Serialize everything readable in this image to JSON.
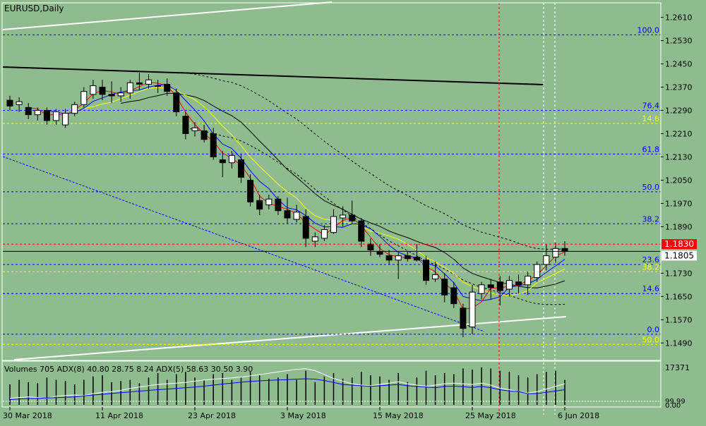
{
  "header": {
    "symbol_label": "EURUSD,Daily",
    "indicator_label": "Volumes 705 ADX(8) 40.80 28.75 8.24 ADX(5) 58.63 30.50 3.90"
  },
  "colors": {
    "background": "#8fbc8f",
    "bull": "#ffffff",
    "bear": "#000000",
    "fib_blue": "#0000ff",
    "fib_yellow": "#ffff00",
    "ma_red": "#ff0000",
    "ma_blue": "#0000ff",
    "ma_yellow": "#ffff00",
    "ma_black": "#000000",
    "current_price_bg": "#ff0000"
  },
  "chart_data": {
    "type": "candlestick",
    "symbol": "EURUSD",
    "timeframe": "Daily",
    "ylim": [
      1.143,
      1.266
    ],
    "y_ticks": [
      "1.2610",
      "1.2530",
      "1.2450",
      "1.2370",
      "1.2290",
      "1.2210",
      "1.2130",
      "1.2050",
      "1.1970",
      "1.1890",
      "1.1730",
      "1.1650",
      "1.1570",
      "1.1490"
    ],
    "x_ticks": [
      {
        "i": 0,
        "label": "30 Mar 2018"
      },
      {
        "i": 10,
        "label": "11 Apr 2018"
      },
      {
        "i": 20,
        "label": "23 Apr 2018"
      },
      {
        "i": 30,
        "label": "3 May 2018"
      },
      {
        "i": 40,
        "label": "15 May 2018"
      },
      {
        "i": 50,
        "label": "25 May 2018"
      },
      {
        "i": 60,
        "label": "6 Jun 2018"
      }
    ],
    "candles": [
      {
        "o": 1.2325,
        "h": 1.234,
        "l": 1.229,
        "c": 1.2305
      },
      {
        "o": 1.231,
        "h": 1.2335,
        "l": 1.2285,
        "c": 1.232
      },
      {
        "o": 1.23,
        "h": 1.2315,
        "l": 1.226,
        "c": 1.2275
      },
      {
        "o": 1.2275,
        "h": 1.23,
        "l": 1.2255,
        "c": 1.229
      },
      {
        "o": 1.229,
        "h": 1.23,
        "l": 1.224,
        "c": 1.2255
      },
      {
        "o": 1.2255,
        "h": 1.2295,
        "l": 1.224,
        "c": 1.2285
      },
      {
        "o": 1.224,
        "h": 1.2295,
        "l": 1.223,
        "c": 1.228
      },
      {
        "o": 1.228,
        "h": 1.232,
        "l": 1.227,
        "c": 1.231
      },
      {
        "o": 1.231,
        "h": 1.237,
        "l": 1.23,
        "c": 1.2355
      },
      {
        "o": 1.2345,
        "h": 1.2395,
        "l": 1.233,
        "c": 1.2375
      },
      {
        "o": 1.237,
        "h": 1.2395,
        "l": 1.2325,
        "c": 1.2345
      },
      {
        "o": 1.2345,
        "h": 1.239,
        "l": 1.2315,
        "c": 1.234
      },
      {
        "o": 1.234,
        "h": 1.237,
        "l": 1.232,
        "c": 1.235
      },
      {
        "o": 1.235,
        "h": 1.2395,
        "l": 1.233,
        "c": 1.2385
      },
      {
        "o": 1.2385,
        "h": 1.242,
        "l": 1.236,
        "c": 1.238
      },
      {
        "o": 1.238,
        "h": 1.2415,
        "l": 1.2365,
        "c": 1.2395
      },
      {
        "o": 1.2375,
        "h": 1.2395,
        "l": 1.235,
        "c": 1.2375
      },
      {
        "o": 1.238,
        "h": 1.24,
        "l": 1.234,
        "c": 1.2355
      },
      {
        "o": 1.235,
        "h": 1.2365,
        "l": 1.227,
        "c": 1.2285
      },
      {
        "o": 1.227,
        "h": 1.2285,
        "l": 1.219,
        "c": 1.221
      },
      {
        "o": 1.222,
        "h": 1.225,
        "l": 1.22,
        "c": 1.223
      },
      {
        "o": 1.222,
        "h": 1.224,
        "l": 1.218,
        "c": 1.219
      },
      {
        "o": 1.221,
        "h": 1.223,
        "l": 1.212,
        "c": 1.213
      },
      {
        "o": 1.212,
        "h": 1.215,
        "l": 1.206,
        "c": 1.211
      },
      {
        "o": 1.211,
        "h": 1.215,
        "l": 1.209,
        "c": 1.2135
      },
      {
        "o": 1.212,
        "h": 1.214,
        "l": 1.204,
        "c": 1.206
      },
      {
        "o": 1.205,
        "h": 1.207,
        "l": 1.196,
        "c": 1.1975
      },
      {
        "o": 1.198,
        "h": 1.2,
        "l": 1.193,
        "c": 1.195
      },
      {
        "o": 1.1965,
        "h": 1.2,
        "l": 1.195,
        "c": 1.1985
      },
      {
        "o": 1.1985,
        "h": 1.1995,
        "l": 1.193,
        "c": 1.1945
      },
      {
        "o": 1.1945,
        "h": 1.199,
        "l": 1.19,
        "c": 1.192
      },
      {
        "o": 1.1915,
        "h": 1.1965,
        "l": 1.1905,
        "c": 1.194
      },
      {
        "o": 1.1925,
        "h": 1.195,
        "l": 1.182,
        "c": 1.185
      },
      {
        "o": 1.184,
        "h": 1.187,
        "l": 1.182,
        "c": 1.1855
      },
      {
        "o": 1.185,
        "h": 1.1895,
        "l": 1.184,
        "c": 1.188
      },
      {
        "o": 1.187,
        "h": 1.195,
        "l": 1.1865,
        "c": 1.1925
      },
      {
        "o": 1.192,
        "h": 1.196,
        "l": 1.189,
        "c": 1.193
      },
      {
        "o": 1.193,
        "h": 1.198,
        "l": 1.19,
        "c": 1.191
      },
      {
        "o": 1.191,
        "h": 1.192,
        "l": 1.182,
        "c": 1.184
      },
      {
        "o": 1.183,
        "h": 1.185,
        "l": 1.179,
        "c": 1.181
      },
      {
        "o": 1.1805,
        "h": 1.183,
        "l": 1.1785,
        "c": 1.1795
      },
      {
        "o": 1.179,
        "h": 1.181,
        "l": 1.176,
        "c": 1.1775
      },
      {
        "o": 1.1775,
        "h": 1.18,
        "l": 1.171,
        "c": 1.179
      },
      {
        "o": 1.179,
        "h": 1.1805,
        "l": 1.177,
        "c": 1.178
      },
      {
        "o": 1.1785,
        "h": 1.183,
        "l": 1.177,
        "c": 1.1775
      },
      {
        "o": 1.1775,
        "h": 1.179,
        "l": 1.169,
        "c": 1.1705
      },
      {
        "o": 1.171,
        "h": 1.177,
        "l": 1.17,
        "c": 1.1725
      },
      {
        "o": 1.171,
        "h": 1.173,
        "l": 1.163,
        "c": 1.1655
      },
      {
        "o": 1.168,
        "h": 1.17,
        "l": 1.161,
        "c": 1.1625
      },
      {
        "o": 1.161,
        "h": 1.1625,
        "l": 1.151,
        "c": 1.154
      },
      {
        "o": 1.1545,
        "h": 1.169,
        "l": 1.152,
        "c": 1.1665
      },
      {
        "o": 1.166,
        "h": 1.17,
        "l": 1.164,
        "c": 1.169
      },
      {
        "o": 1.169,
        "h": 1.171,
        "l": 1.164,
        "c": 1.168
      },
      {
        "o": 1.17,
        "h": 1.172,
        "l": 1.162,
        "c": 1.167
      },
      {
        "o": 1.1675,
        "h": 1.172,
        "l": 1.165,
        "c": 1.1705
      },
      {
        "o": 1.17,
        "h": 1.1725,
        "l": 1.166,
        "c": 1.169
      },
      {
        "o": 1.169,
        "h": 1.1735,
        "l": 1.1655,
        "c": 1.172
      },
      {
        "o": 1.1715,
        "h": 1.177,
        "l": 1.17,
        "c": 1.176
      },
      {
        "o": 1.176,
        "h": 1.183,
        "l": 1.174,
        "c": 1.179
      },
      {
        "o": 1.1785,
        "h": 1.1835,
        "l": 1.1765,
        "c": 1.1815
      },
      {
        "o": 1.1815,
        "h": 1.184,
        "l": 1.179,
        "c": 1.1805
      }
    ],
    "current_price": {
      "value": 1.1805,
      "label": "1.1805"
    },
    "price_line": {
      "value": 1.183,
      "label": "1.1830"
    },
    "fib_levels_blue": [
      {
        "label": "100.0",
        "y": 1.255
      },
      {
        "label": "76.4",
        "y": 1.229
      },
      {
        "label": "61.8",
        "y": 1.214
      },
      {
        "label": "50.0",
        "y": 1.201
      },
      {
        "label": "38.2",
        "y": 1.19
      },
      {
        "label": "23.6",
        "y": 1.176
      },
      {
        "label": "14.6",
        "y": 1.166
      },
      {
        "label": "0.0",
        "y": 1.152
      }
    ],
    "fib_levels_yellow": [
      {
        "label": "14.6",
        "y": 1.2245
      },
      {
        "label": "38.2",
        "y": 1.1735
      },
      {
        "label": "50.0",
        "y": 1.1485
      }
    ],
    "volume_panel": {
      "ylim": [
        0,
        17371
      ],
      "top_label": "17371",
      "bottom_labels": [
        "99.99",
        "0.00"
      ],
      "volumes": [
        9000,
        11000,
        10000,
        9500,
        12000,
        11000,
        10500,
        9000,
        11000,
        12500,
        13000,
        10000,
        10500,
        11000,
        9500,
        12000,
        14000,
        11000,
        13500,
        14500,
        12000,
        11000,
        13500,
        14000,
        11000,
        12000,
        14500,
        13000,
        11500,
        12000,
        13500,
        11000,
        15000,
        10000,
        12500,
        14000,
        11500,
        12000,
        14500,
        13000,
        12500,
        11000,
        14000,
        10000,
        12000,
        15000,
        13000,
        14000,
        13500,
        16000,
        15500,
        16500,
        16000,
        15000,
        14500,
        13000,
        12000,
        13500,
        14500,
        15000,
        11000
      ],
      "adx8": [
        4,
        4.5,
        4.8,
        5,
        5.2,
        5.5,
        5.8,
        6,
        6.8,
        7.5,
        8,
        8.6,
        9.2,
        9.8,
        10.4,
        11,
        11.5,
        12,
        12.5,
        13,
        13.5,
        14.2,
        15,
        15.8,
        16.5,
        17.2,
        17.8,
        18.2,
        18.6,
        18.9,
        19.2,
        19.5,
        19.8,
        19.5,
        18.5,
        17,
        15.5,
        15,
        14.5,
        14,
        14.5,
        15,
        15.5,
        14.5,
        14,
        13.5,
        13,
        14,
        14.2,
        13.8,
        13.2,
        14,
        13,
        11.5,
        10.5,
        10,
        8.5,
        8.5,
        9.5,
        10.5,
        11.5
      ],
      "adx5": [
        5,
        5.5,
        6,
        5.5,
        5,
        6.5,
        7,
        7.5,
        7,
        8.5,
        9.5,
        10,
        11,
        12.5,
        13.5,
        14.5,
        15.5,
        16,
        16.5,
        17,
        18,
        18.8,
        19.5,
        20,
        20.5,
        21,
        22,
        23,
        24,
        25,
        26,
        27,
        27.5,
        26,
        23,
        20,
        18,
        16,
        15,
        14.5,
        15.5,
        16.5,
        17.5,
        16,
        15,
        14,
        15,
        16,
        16.5,
        16,
        15.5,
        16.5,
        15,
        12.5,
        11.5,
        10,
        9,
        10,
        12,
        14,
        16
      ]
    }
  }
}
